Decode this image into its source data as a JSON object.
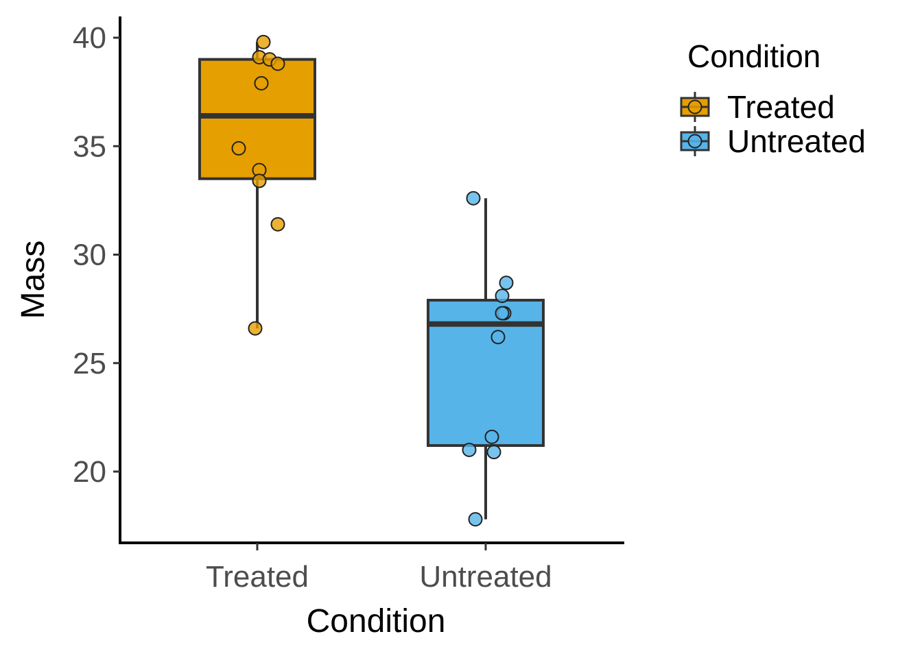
{
  "chart_data": {
    "type": "box",
    "xlabel": "Condition",
    "ylabel": "Mass",
    "categories": [
      "Treated",
      "Untreated"
    ],
    "ylim": [
      16.8,
      41.0
    ],
    "yticks": [
      20,
      25,
      30,
      35,
      40
    ],
    "legend": {
      "title": "Condition",
      "placement": "right",
      "items": [
        {
          "label": "Treated",
          "color": "#E69F00"
        },
        {
          "label": "Untreated",
          "color": "#56B4E9"
        }
      ]
    },
    "series": [
      {
        "category": "Treated",
        "color": "#E69F00",
        "box": {
          "min": 26.6,
          "q1": 33.5,
          "median": 36.4,
          "q3": 39.0,
          "max": 39.8
        },
        "points": [
          {
            "offset": 0.03,
            "y": 39.8
          },
          {
            "offset": 0.01,
            "y": 39.1
          },
          {
            "offset": 0.06,
            "y": 39.0
          },
          {
            "offset": 0.1,
            "y": 38.8
          },
          {
            "offset": 0.02,
            "y": 37.9
          },
          {
            "offset": -0.09,
            "y": 34.9
          },
          {
            "offset": 0.01,
            "y": 33.9
          },
          {
            "offset": 0.01,
            "y": 33.4
          },
          {
            "offset": 0.1,
            "y": 31.4
          },
          {
            "offset": -0.01,
            "y": 26.6
          }
        ]
      },
      {
        "category": "Untreated",
        "color": "#56B4E9",
        "box": {
          "min": 17.8,
          "q1": 21.2,
          "median": 26.8,
          "q3": 27.9,
          "max": 32.6
        },
        "points": [
          {
            "offset": -0.06,
            "y": 32.6
          },
          {
            "offset": 0.1,
            "y": 28.7
          },
          {
            "offset": 0.08,
            "y": 28.1
          },
          {
            "offset": 0.09,
            "y": 27.3
          },
          {
            "offset": 0.08,
            "y": 27.3
          },
          {
            "offset": 0.06,
            "y": 26.2
          },
          {
            "offset": 0.03,
            "y": 21.6
          },
          {
            "offset": -0.08,
            "y": 21.0
          },
          {
            "offset": 0.04,
            "y": 20.9
          },
          {
            "offset": -0.05,
            "y": 17.8
          }
        ]
      }
    ]
  }
}
